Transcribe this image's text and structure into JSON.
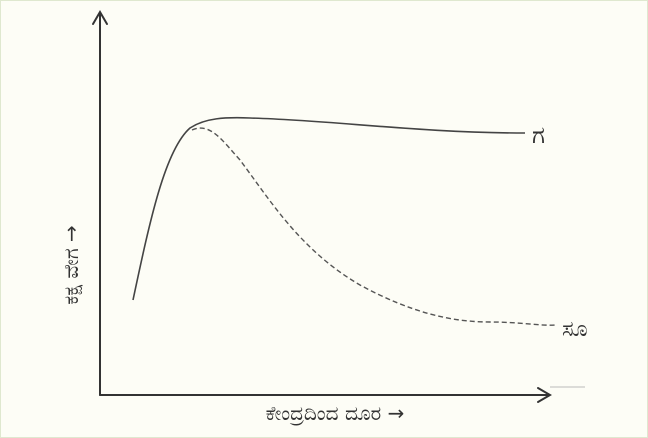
{
  "axes": {
    "x_label": "ಕೇಂದ್ರದಿಂದ ದೂರ →",
    "y_label": "ಕಕ್ಷ ವೇಗ →"
  },
  "curves": [
    {
      "label": "ಗ"
    },
    {
      "label": "ಸೂ"
    }
  ]
}
